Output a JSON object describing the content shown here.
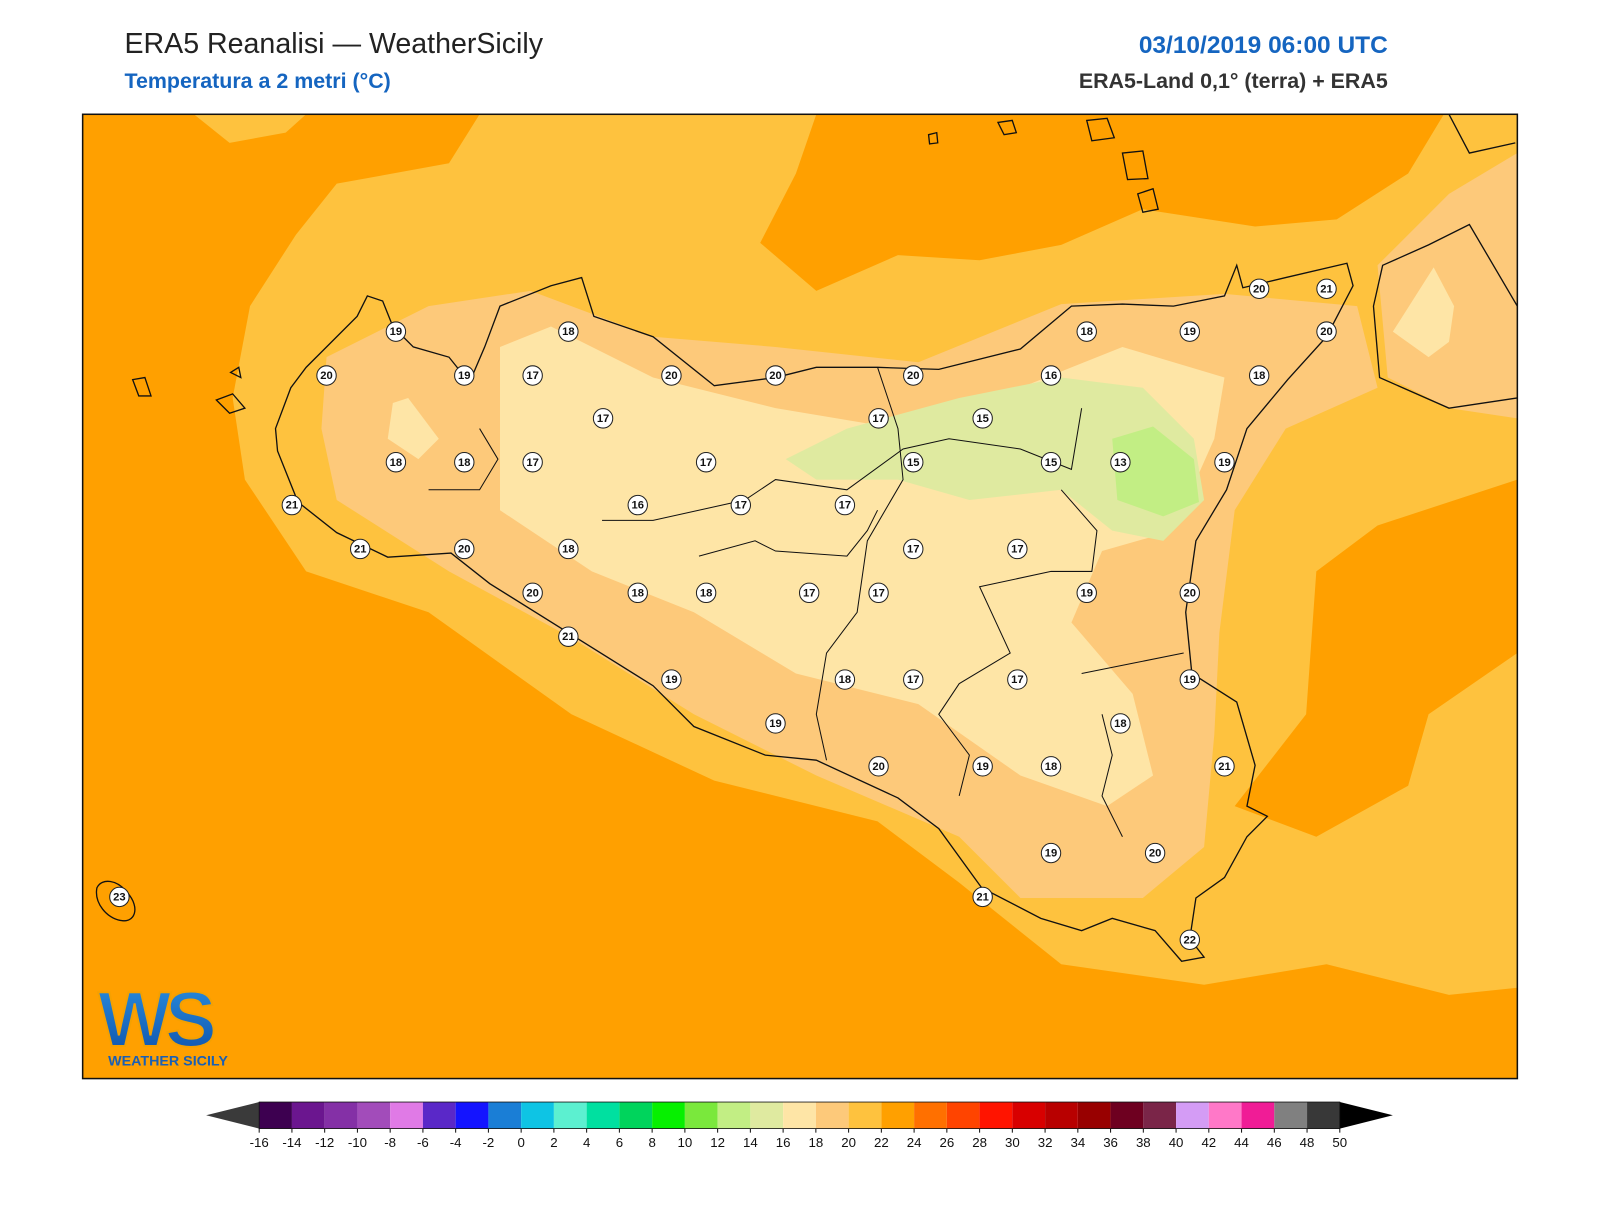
{
  "header": {
    "title": "ERA5 Reanalisi — WeatherSicily",
    "subtitle": "Temperatura a 2 metri (°C)",
    "datetime": "03/10/2019 06:00 UTC",
    "source": "ERA5-Land 0,1° (terra) + ERA5"
  },
  "stations": [
    19,
    18,
    20,
    19,
    17,
    20,
    20,
    20,
    16,
    18,
    19,
    20,
    21,
    20,
    18,
    17,
    17,
    15,
    18,
    18,
    17,
    17,
    15,
    15,
    13,
    19,
    21,
    16,
    17,
    17,
    21,
    20,
    18,
    17,
    17,
    20,
    18,
    18,
    17,
    17,
    19,
    20,
    21,
    19,
    18,
    17,
    17,
    19,
    19,
    18,
    20,
    19,
    18,
    21,
    19,
    20,
    21,
    23,
    22
  ],
  "logo": {
    "mark": "WS",
    "text": "WEATHER SICILY"
  },
  "colorbar": {
    "ticks": [
      -16,
      -14,
      -12,
      -10,
      -8,
      -6,
      -4,
      -2,
      0,
      2,
      4,
      6,
      8,
      10,
      12,
      14,
      16,
      18,
      20,
      22,
      24,
      26,
      28,
      30,
      32,
      34,
      36,
      38,
      40,
      42,
      44,
      46,
      48,
      50
    ],
    "colors": [
      "#3d0050",
      "#6b168f",
      "#8430a6",
      "#a24cba",
      "#e07ae6",
      "#5a28c8",
      "#1414ff",
      "#1a7ed6",
      "#0ec4e4",
      "#5cf0d0",
      "#00e0a0",
      "#00d45c",
      "#06f000",
      "#7ae83c",
      "#c2ee84",
      "#dfeaa0",
      "#fee5a6",
      "#fdc97a",
      "#fec23e",
      "#ffa000",
      "#ff7000",
      "#ff4400",
      "#ff1400",
      "#d80000",
      "#b80000",
      "#980000",
      "#6e0020",
      "#7a2548",
      "#d49cf5",
      "#ff78c8",
      "#f01c96",
      "#808080",
      "#383838"
    ],
    "under_color": "#3a3a3a",
    "over_color": "#000000"
  }
}
